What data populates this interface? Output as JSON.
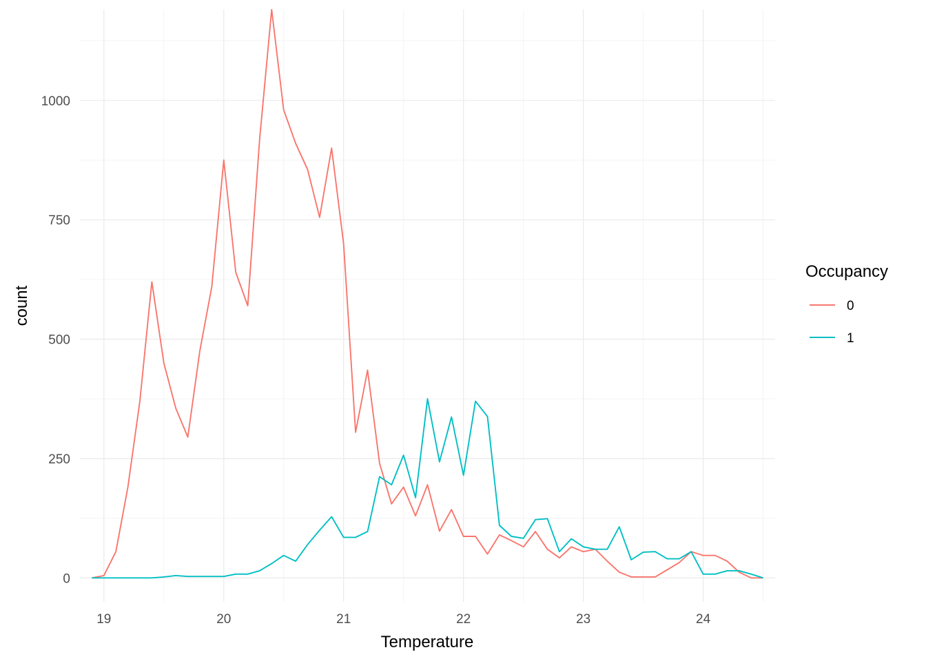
{
  "chart_data": {
    "type": "line",
    "xlabel": "Temperature",
    "ylabel": "count",
    "xlim": [
      18.8,
      24.6
    ],
    "ylim": [
      -50,
      1190
    ],
    "x_ticks": [
      19,
      20,
      21,
      22,
      23,
      24
    ],
    "y_ticks": [
      0,
      250,
      500,
      750,
      1000
    ],
    "grid": true,
    "legend": {
      "title": "Occupancy",
      "position": "right"
    },
    "series": [
      {
        "name": "0",
        "color": "#F8766D",
        "points": [
          [
            18.9,
            0
          ],
          [
            19.0,
            5
          ],
          [
            19.1,
            55
          ],
          [
            19.2,
            190
          ],
          [
            19.3,
            370
          ],
          [
            19.4,
            620
          ],
          [
            19.5,
            450
          ],
          [
            19.6,
            355
          ],
          [
            19.7,
            295
          ],
          [
            19.8,
            475
          ],
          [
            19.9,
            610
          ],
          [
            20.0,
            875
          ],
          [
            20.1,
            640
          ],
          [
            20.2,
            570
          ],
          [
            20.3,
            920
          ],
          [
            20.4,
            1190
          ],
          [
            20.5,
            980
          ],
          [
            20.6,
            910
          ],
          [
            20.7,
            855
          ],
          [
            20.8,
            755
          ],
          [
            20.9,
            900
          ],
          [
            21.0,
            700
          ],
          [
            21.1,
            305
          ],
          [
            21.2,
            435
          ],
          [
            21.3,
            240
          ],
          [
            21.4,
            155
          ],
          [
            21.5,
            190
          ],
          [
            21.6,
            130
          ],
          [
            21.7,
            195
          ],
          [
            21.8,
            98
          ],
          [
            21.9,
            143
          ],
          [
            22.0,
            87
          ],
          [
            22.1,
            87
          ],
          [
            22.2,
            50
          ],
          [
            22.3,
            90
          ],
          [
            22.4,
            78
          ],
          [
            22.5,
            65
          ],
          [
            22.6,
            97
          ],
          [
            22.7,
            60
          ],
          [
            22.8,
            42
          ],
          [
            22.9,
            65
          ],
          [
            23.0,
            55
          ],
          [
            23.1,
            60
          ],
          [
            23.2,
            35
          ],
          [
            23.3,
            12
          ],
          [
            23.4,
            2
          ],
          [
            23.5,
            2
          ],
          [
            23.6,
            2
          ],
          [
            23.7,
            17
          ],
          [
            23.8,
            32
          ],
          [
            23.9,
            55
          ],
          [
            24.0,
            47
          ],
          [
            24.1,
            47
          ],
          [
            24.2,
            35
          ],
          [
            24.3,
            12
          ],
          [
            24.4,
            0
          ],
          [
            24.5,
            0
          ]
        ]
      },
      {
        "name": "1",
        "color": "#00BFC4",
        "points": [
          [
            18.9,
            0
          ],
          [
            19.0,
            0
          ],
          [
            19.1,
            0
          ],
          [
            19.2,
            0
          ],
          [
            19.3,
            0
          ],
          [
            19.4,
            0
          ],
          [
            19.5,
            2
          ],
          [
            19.6,
            5
          ],
          [
            19.7,
            3
          ],
          [
            19.8,
            3
          ],
          [
            19.9,
            3
          ],
          [
            20.0,
            3
          ],
          [
            20.1,
            8
          ],
          [
            20.2,
            8
          ],
          [
            20.3,
            15
          ],
          [
            20.4,
            30
          ],
          [
            20.5,
            47
          ],
          [
            20.6,
            35
          ],
          [
            20.7,
            70
          ],
          [
            20.8,
            100
          ],
          [
            20.9,
            128
          ],
          [
            21.0,
            85
          ],
          [
            21.1,
            85
          ],
          [
            21.2,
            97
          ],
          [
            21.3,
            212
          ],
          [
            21.4,
            195
          ],
          [
            21.5,
            257
          ],
          [
            21.6,
            168
          ],
          [
            21.7,
            375
          ],
          [
            21.8,
            243
          ],
          [
            21.9,
            337
          ],
          [
            22.0,
            215
          ],
          [
            22.1,
            370
          ],
          [
            22.2,
            338
          ],
          [
            22.3,
            110
          ],
          [
            22.4,
            87
          ],
          [
            22.5,
            83
          ],
          [
            22.6,
            122
          ],
          [
            22.7,
            124
          ],
          [
            22.8,
            55
          ],
          [
            22.9,
            82
          ],
          [
            23.0,
            65
          ],
          [
            23.1,
            60
          ],
          [
            23.2,
            60
          ],
          [
            23.3,
            107
          ],
          [
            23.4,
            38
          ],
          [
            23.5,
            54
          ],
          [
            23.6,
            55
          ],
          [
            23.7,
            40
          ],
          [
            23.8,
            40
          ],
          [
            23.9,
            55
          ],
          [
            24.0,
            8
          ],
          [
            24.1,
            8
          ],
          [
            24.2,
            15
          ],
          [
            24.3,
            15
          ],
          [
            24.4,
            8
          ],
          [
            24.5,
            0
          ]
        ]
      }
    ]
  }
}
